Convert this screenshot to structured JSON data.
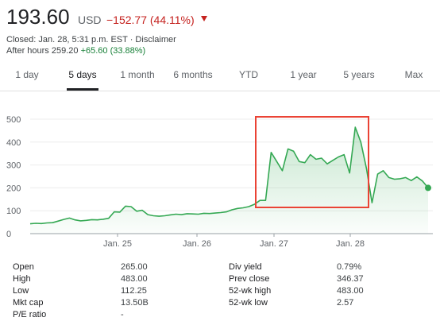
{
  "quote": {
    "price": "193.60",
    "currency": "USD",
    "change": "−152.77 (44.11%)",
    "closed_text": "Closed: Jan. 28, 5:31 p.m. EST · Disclaimer",
    "after_hours_label": "After hours 259.20",
    "after_hours_change": "+65.60 (33.88%)"
  },
  "tabs": [
    "1 day",
    "5 days",
    "1 month",
    "6 months",
    "YTD",
    "1 year",
    "5 years",
    "Max"
  ],
  "active_tab": "5 days",
  "colors": {
    "line": "#34a853",
    "negative": "#c5221f",
    "positive": "#188038",
    "highlight_box": "#ea4335"
  },
  "chart_data": {
    "type": "area",
    "y_ticks": [
      "500",
      "400",
      "300",
      "200",
      "100",
      "0"
    ],
    "ylim": [
      0,
      500
    ],
    "x_ticks": [
      "Jan. 25",
      "Jan. 26",
      "Jan. 27",
      "Jan. 28"
    ],
    "grid": true,
    "series": [
      {
        "values": [
          43,
          45,
          44,
          47,
          48,
          55,
          62,
          68,
          60,
          56,
          58,
          61,
          60,
          63,
          67,
          95,
          94,
          120,
          118,
          98,
          102,
          83,
          78,
          76,
          78,
          82,
          85,
          83,
          87,
          86,
          85,
          89,
          88,
          90,
          92,
          95,
          104,
          110,
          113,
          118,
          128,
          145,
          145,
          355,
          315,
          275,
          370,
          360,
          315,
          310,
          345,
          325,
          330,
          305,
          320,
          335,
          345,
          265,
          465,
          400,
          285,
          135,
          260,
          275,
          245,
          238,
          240,
          245,
          232,
          248,
          230,
          200
        ]
      }
    ],
    "after_hours_point": 200,
    "annotation": "red rectangle highlighting Jan. 27 – Jan. 28 session"
  },
  "stats": {
    "left": [
      {
        "label": "Open",
        "value": "265.00"
      },
      {
        "label": "High",
        "value": "483.00"
      },
      {
        "label": "Low",
        "value": "112.25"
      },
      {
        "label": "Mkt cap",
        "value": "13.50B"
      },
      {
        "label": "P/E ratio",
        "value": "-"
      }
    ],
    "right": [
      {
        "label": "Div yield",
        "value": "0.79%"
      },
      {
        "label": "Prev close",
        "value": "346.37"
      },
      {
        "label": "52-wk high",
        "value": "483.00"
      },
      {
        "label": "52-wk low",
        "value": "2.57"
      }
    ]
  }
}
